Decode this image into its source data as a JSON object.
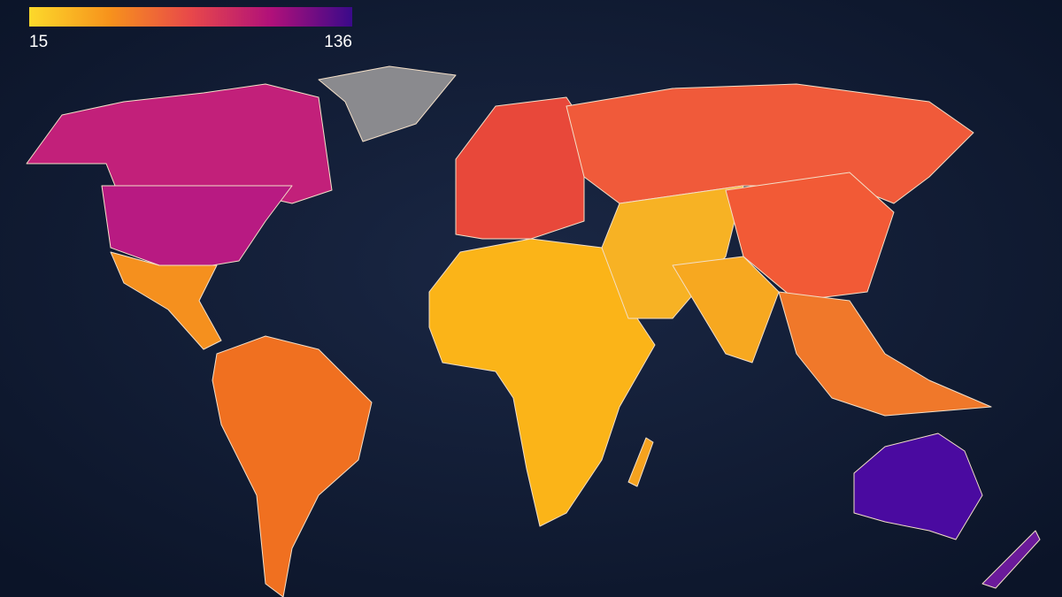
{
  "legend": {
    "min": 15,
    "max": 136,
    "colors": [
      "#fcd92b",
      "#f7921c",
      "#e8484a",
      "#b0107a",
      "#3a0a8a"
    ]
  }
}
